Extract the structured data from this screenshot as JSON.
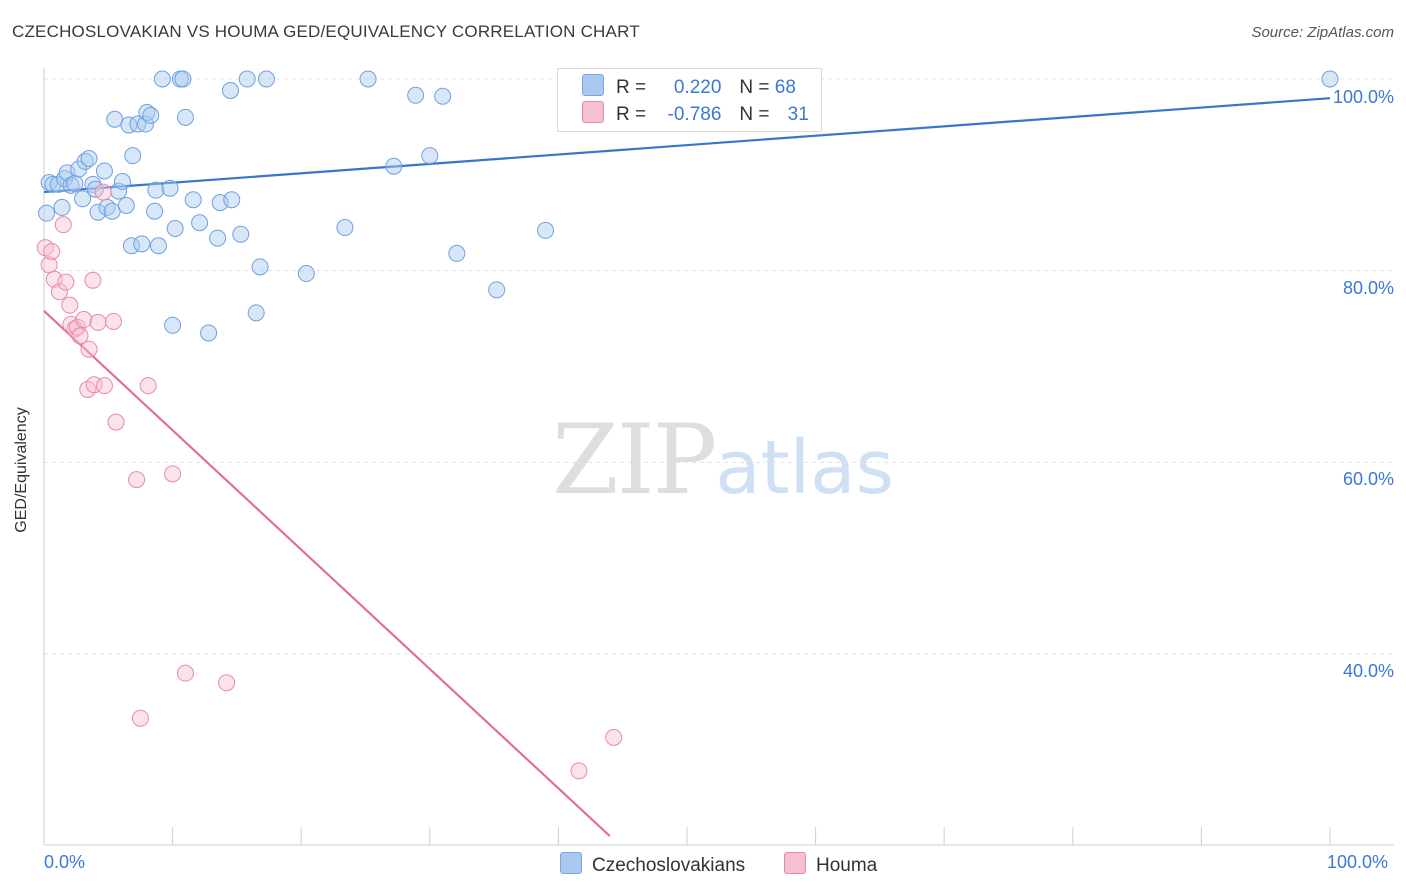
{
  "title": "CZECHOSLOVAKIAN VS HOUMA GED/EQUIVALENCY CORRELATION CHART",
  "source": "Source: ZipAtlas.com",
  "watermark": {
    "zip": "ZIP",
    "atlas": "atlas"
  },
  "legend": {
    "r_label": "R =",
    "n_label": "N =",
    "rows": [
      {
        "r": "0.220",
        "n": "68",
        "color": "#a9c9f0",
        "border": "#7aa7e0"
      },
      {
        "r": "-0.786",
        "n": "31",
        "color": "#f7c0d1",
        "border": "#e88aa8"
      }
    ]
  },
  "bottom_legend": [
    {
      "label": "Czechoslovakians",
      "color": "#a9c9f0",
      "border": "#7aa7e0"
    },
    {
      "label": "Houma",
      "color": "#f7c0d1",
      "border": "#e88aa8"
    }
  ],
  "y_axis_label": "GED/Equivalency",
  "y_ticks": [
    "100.0%",
    "80.0%",
    "60.0%",
    "40.0%"
  ],
  "x_ticks": [
    "0.0%",
    "100.0%"
  ],
  "chart_data": {
    "type": "scatter",
    "title": "CZECHOSLOVAKIAN VS HOUMA GED/EQUIVALENCY CORRELATION CHART",
    "xlabel": "",
    "ylabel": "GED/Equivalency",
    "xlim": [
      0,
      100
    ],
    "ylim": [
      21,
      101
    ],
    "grid": true,
    "series": [
      {
        "name": "Czechoslovakians",
        "color": "#6fa0e0",
        "fill": "#a9c9f0",
        "trend": {
          "x": [
            0,
            100
          ],
          "y": [
            88.2,
            98.0
          ]
        },
        "points": [
          [
            0.2,
            86.0
          ],
          [
            0.4,
            89.2
          ],
          [
            0.7,
            89.0
          ],
          [
            1.1,
            89.0
          ],
          [
            1.4,
            86.6
          ],
          [
            1.6,
            89.6
          ],
          [
            1.8,
            90.2
          ],
          [
            2.1,
            88.9
          ],
          [
            2.4,
            89.1
          ],
          [
            2.7,
            90.6
          ],
          [
            3.0,
            87.5
          ],
          [
            3.2,
            91.4
          ],
          [
            3.5,
            91.7
          ],
          [
            3.8,
            89.0
          ],
          [
            4.0,
            88.5
          ],
          [
            4.2,
            86.1
          ],
          [
            4.7,
            90.4
          ],
          [
            4.9,
            86.6
          ],
          [
            5.3,
            86.2
          ],
          [
            5.5,
            95.8
          ],
          [
            5.8,
            88.3
          ],
          [
            6.1,
            89.3
          ],
          [
            6.4,
            86.8
          ],
          [
            6.6,
            95.2
          ],
          [
            6.8,
            82.6
          ],
          [
            6.9,
            92.0
          ],
          [
            7.3,
            95.3
          ],
          [
            7.6,
            82.8
          ],
          [
            7.9,
            95.3
          ],
          [
            8.0,
            96.5
          ],
          [
            8.3,
            96.2
          ],
          [
            8.6,
            86.2
          ],
          [
            8.7,
            88.4
          ],
          [
            8.9,
            82.6
          ],
          [
            9.2,
            100.0
          ],
          [
            9.8,
            88.6
          ],
          [
            10.0,
            74.3
          ],
          [
            10.2,
            84.4
          ],
          [
            10.6,
            100.0
          ],
          [
            10.8,
            100.0
          ],
          [
            11.0,
            96.0
          ],
          [
            11.6,
            87.4
          ],
          [
            12.1,
            85.0
          ],
          [
            12.8,
            73.5
          ],
          [
            13.5,
            83.4
          ],
          [
            13.7,
            87.1
          ],
          [
            14.5,
            98.8
          ],
          [
            14.6,
            87.4
          ],
          [
            15.3,
            83.8
          ],
          [
            15.8,
            100.0
          ],
          [
            16.5,
            75.6
          ],
          [
            16.8,
            80.4
          ],
          [
            17.3,
            100.0
          ],
          [
            20.4,
            79.7
          ],
          [
            23.4,
            84.5
          ],
          [
            25.2,
            100.0
          ],
          [
            27.2,
            90.9
          ],
          [
            28.9,
            98.3
          ],
          [
            30.0,
            92.0
          ],
          [
            31.0,
            98.2
          ],
          [
            32.1,
            81.8
          ],
          [
            35.2,
            78.0
          ],
          [
            39.0,
            84.2
          ],
          [
            100.0,
            100.0
          ]
        ]
      },
      {
        "name": "Houma",
        "color": "#e88aa8",
        "fill": "#f7c0d1",
        "trend": {
          "x": [
            0,
            44
          ],
          "y": [
            75.8,
            21.0
          ]
        },
        "points": [
          [
            0.1,
            82.4
          ],
          [
            0.4,
            80.6
          ],
          [
            0.6,
            82.0
          ],
          [
            0.8,
            79.1
          ],
          [
            1.2,
            77.8
          ],
          [
            1.5,
            84.8
          ],
          [
            1.7,
            78.8
          ],
          [
            2.0,
            76.4
          ],
          [
            2.1,
            74.4
          ],
          [
            2.4,
            73.9
          ],
          [
            2.6,
            74.1
          ],
          [
            2.8,
            73.2
          ],
          [
            3.1,
            74.9
          ],
          [
            3.4,
            67.6
          ],
          [
            3.5,
            71.8
          ],
          [
            3.8,
            79.0
          ],
          [
            3.9,
            68.1
          ],
          [
            4.2,
            74.6
          ],
          [
            4.6,
            88.2
          ],
          [
            4.7,
            68.0
          ],
          [
            5.4,
            74.7
          ],
          [
            5.6,
            64.2
          ],
          [
            7.2,
            58.2
          ],
          [
            7.5,
            33.3
          ],
          [
            8.1,
            68.0
          ],
          [
            10.0,
            58.8
          ],
          [
            11.0,
            38.0
          ],
          [
            14.2,
            37.0
          ],
          [
            41.6,
            27.8
          ],
          [
            44.3,
            31.3
          ]
        ]
      }
    ]
  }
}
